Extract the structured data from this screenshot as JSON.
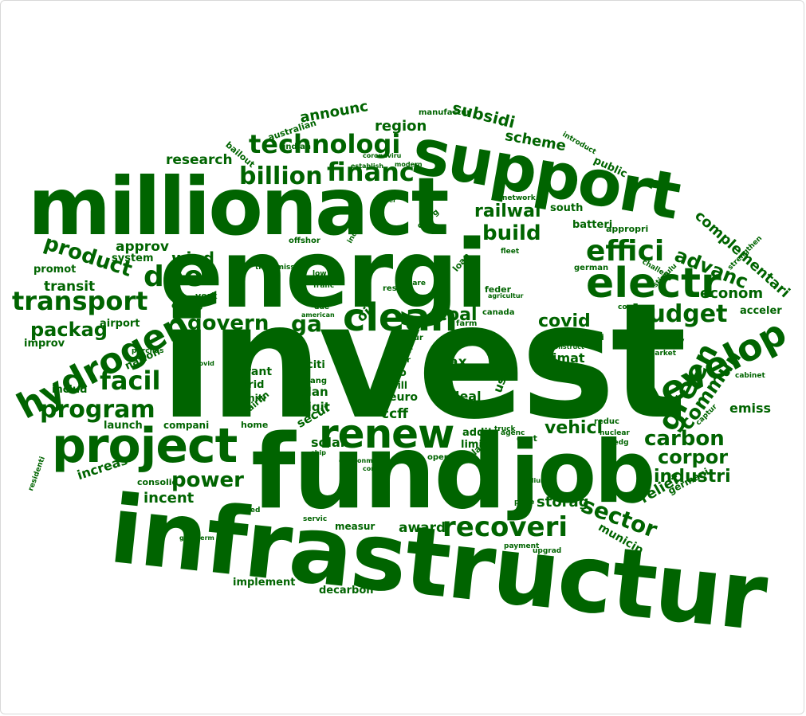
{
  "word_cloud": {
    "color": "#006400",
    "words": [
      "invest",
      "energi",
      "infrastructur",
      "fund",
      "job",
      "million",
      "act",
      "support",
      "project",
      "renew",
      "develop",
      "electr",
      "hydrogen",
      "clean",
      "technologi",
      "financ",
      "transport",
      "recoveri",
      "green",
      "effici",
      "billion",
      "doe",
      "ga",
      "facil",
      "program",
      "budget",
      "carbon",
      "power",
      "sector",
      "commun",
      "build",
      "railwai",
      "covid",
      "govern",
      "product",
      "packag",
      "vehicl",
      "corpor",
      "industri",
      "advanc",
      "complementari",
      "subsidi",
      "scheme",
      "region",
      "announc",
      "research",
      "coal",
      "econom",
      "wind",
      "transit",
      "approv",
      "storag",
      "award",
      "incent",
      "relief",
      "municip",
      "emiss",
      "oil",
      "ccff",
      "tax",
      "deal",
      "climat",
      "innov",
      "increas",
      "solar",
      "secur",
      "plan",
      "digit",
      "usd",
      "limit",
      "addit",
      "grant",
      "grid",
      "euro",
      "bill",
      "rio",
      "citi",
      "initi",
      "launch",
      "system",
      "promot",
      "improv",
      "airport",
      "includ",
      "emerg",
      "york",
      "compani",
      "home",
      "airlin",
      "consolid",
      "nation",
      "batteri",
      "public",
      "south",
      "appropri",
      "acceler",
      "cost",
      "decarbon",
      "implement",
      "measur",
      "australian",
      "indian",
      "bailout",
      "germani",
      "reduc",
      "hub",
      "farm",
      "loan",
      "feder",
      "rescu",
      "charg",
      "cabinet",
      "resili",
      "market",
      "captur",
      "nuclear",
      "pledg",
      "plant",
      "speed",
      "payment",
      "upgrad",
      "servic",
      "german",
      "canada",
      "consum",
      "chang",
      "air",
      "car",
      "eur",
      "india",
      "offshor",
      "transmiss",
      "low",
      "franc",
      "care",
      "due",
      "american",
      "stimulu",
      "strengthen",
      "challeng",
      "network",
      "introduct",
      "modern",
      "establish",
      "coronaviru",
      "agricultur",
      "purchas",
      "provid",
      "truck",
      "price",
      "agenc",
      "oper",
      "residenti",
      "geotherm",
      "combat",
      "environment",
      "ship",
      "connect",
      "fleet",
      "manufactur",
      "januari",
      "construct",
      "medium",
      "foster"
    ]
  }
}
